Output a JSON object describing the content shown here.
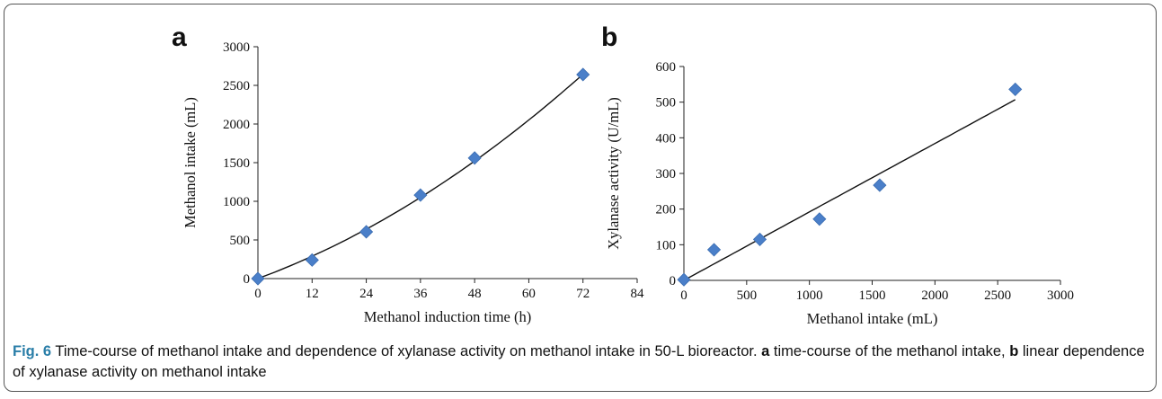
{
  "chart_data": [
    {
      "type": "scatter",
      "panel": "a",
      "title": "",
      "xlabel": "Methanol induction time (h)",
      "ylabel": "Methanol intake (mL)",
      "xlim": [
        0,
        84
      ],
      "ylim": [
        0,
        3000
      ],
      "xticks": [
        0,
        12,
        24,
        36,
        48,
        60,
        72,
        84
      ],
      "yticks": [
        0,
        500,
        1000,
        1500,
        2000,
        2500,
        3000
      ],
      "points": [
        {
          "x": 0,
          "y": 0
        },
        {
          "x": 12,
          "y": 240
        },
        {
          "x": 24,
          "y": 605
        },
        {
          "x": 36,
          "y": 1080
        },
        {
          "x": 48,
          "y": 1560
        },
        {
          "x": 72,
          "y": 2640
        }
      ],
      "trendline": {
        "type": "polynomial",
        "coefficients": [
          0,
          21.6,
          0.21
        ],
        "x_range": [
          0,
          72
        ]
      },
      "grid": false,
      "marker_color": "#4a7fc9"
    },
    {
      "type": "scatter",
      "panel": "b",
      "title": "",
      "xlabel": "Methanol intake (mL)",
      "ylabel": "Xylanase activity (U/mL)",
      "xlim": [
        0,
        3000
      ],
      "ylim": [
        0,
        600
      ],
      "xticks": [
        0,
        500,
        1000,
        1500,
        2000,
        2500,
        3000
      ],
      "yticks": [
        0,
        100,
        200,
        300,
        400,
        500,
        600
      ],
      "points": [
        {
          "x": 0,
          "y": 2
        },
        {
          "x": 240,
          "y": 86
        },
        {
          "x": 605,
          "y": 115
        },
        {
          "x": 1080,
          "y": 172
        },
        {
          "x": 1560,
          "y": 267
        },
        {
          "x": 2640,
          "y": 536
        }
      ],
      "trendline": {
        "type": "linear",
        "slope": 0.192,
        "intercept": 0,
        "x_range": [
          0,
          2640
        ]
      },
      "grid": false,
      "marker_color": "#4a7fc9"
    }
  ],
  "caption": {
    "label": "Fig. 6",
    "text1": " Time-course of methanol intake and dependence of xylanase activity on methanol intake in 50-L bioreactor. ",
    "a": "a",
    "text2": " time-course of the methanol intake, ",
    "b": "b",
    "text3": " linear dependence of xylanase activity on methanol intake"
  }
}
